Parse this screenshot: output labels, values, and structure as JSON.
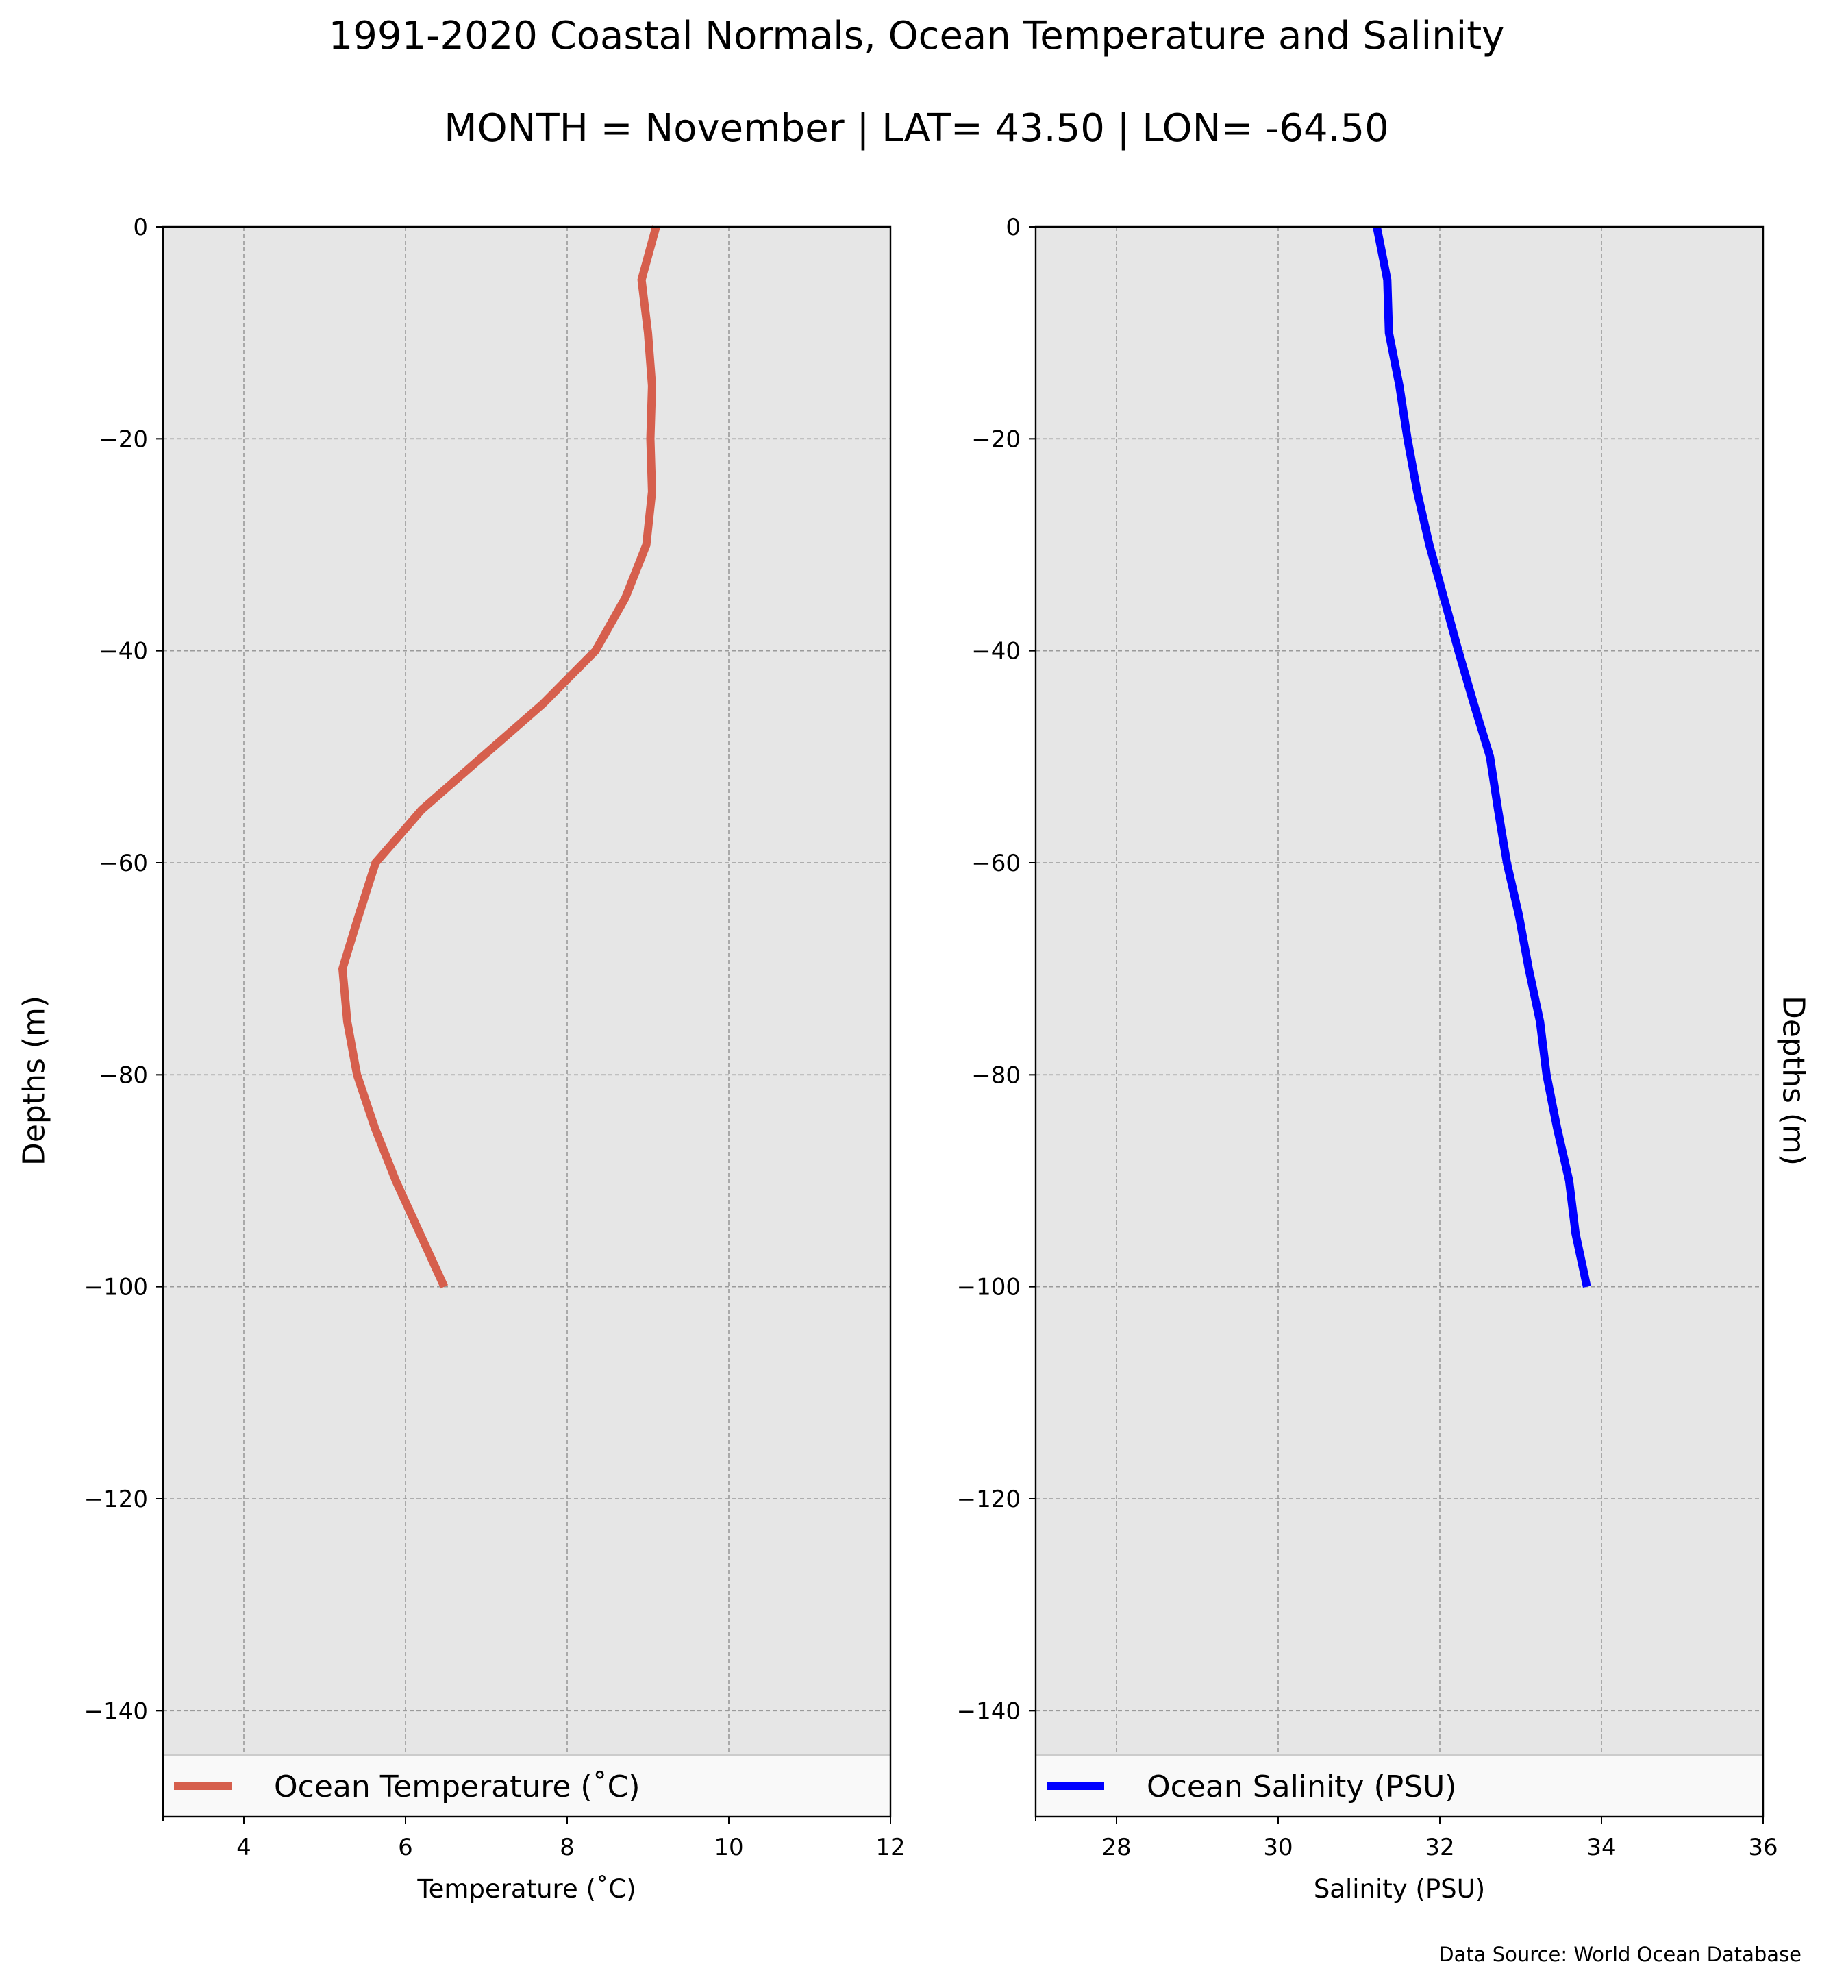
{
  "title": "1991-2020 Coastal Normals, Ocean Temperature and Salinity",
  "subtitle": "MONTH = November | LAT= 43.50 | LON= -64.50",
  "source_note": "Data Source: World Ocean Database",
  "colors": {
    "temperature_line": "#d65f4d",
    "salinity_line": "#0000ff",
    "plot_background": "#e6e6e6",
    "grid": "#9a9a9a"
  },
  "chart_data": [
    {
      "type": "line",
      "xlabel": "Temperature ($^\\circ$C)",
      "xlabel_display": "Temperature (˚C)",
      "ylabel": "Depths (m)",
      "xlim": [
        3,
        12
      ],
      "ylim": [
        -150,
        0
      ],
      "xticks": [
        4,
        6,
        8,
        10,
        12
      ],
      "yticks": [
        0,
        -20,
        -40,
        -60,
        -80,
        -100,
        -120,
        -140
      ],
      "grid": true,
      "legend_position": "bottom",
      "series": [
        {
          "name": "Ocean Temperature (˚C)",
          "color": "#d65f4d",
          "x": [
            9.1,
            8.92,
            9.0,
            9.05,
            9.03,
            9.05,
            8.98,
            8.72,
            8.35,
            7.7,
            6.95,
            6.2,
            5.63,
            5.42,
            5.22,
            5.28,
            5.4,
            5.62,
            5.88,
            6.18,
            6.48
          ],
          "y": [
            0,
            -5,
            -10,
            -15,
            -20,
            -25,
            -30,
            -35,
            -40,
            -45,
            -50,
            -55,
            -60,
            -65,
            -70,
            -75,
            -80,
            -85,
            -90,
            -95,
            -100
          ]
        }
      ]
    },
    {
      "type": "line",
      "xlabel": "Salinity (PSU)",
      "ylabel": "Depths (m)",
      "xlim": [
        27,
        36
      ],
      "ylim": [
        -150,
        0
      ],
      "xticks": [
        28,
        30,
        32,
        34,
        36
      ],
      "yticks": [
        0,
        -20,
        -40,
        -60,
        -80,
        -100,
        -120,
        -140
      ],
      "grid": true,
      "legend_position": "bottom",
      "series": [
        {
          "name": "Ocean Salinity (PSU)",
          "color": "#0000ff",
          "x": [
            31.22,
            31.35,
            31.37,
            31.5,
            31.6,
            31.72,
            31.87,
            32.05,
            32.23,
            32.42,
            32.62,
            32.72,
            32.83,
            32.98,
            33.1,
            33.24,
            33.32,
            33.45,
            33.6,
            33.68,
            33.82
          ],
          "y": [
            0,
            -5,
            -10,
            -15,
            -20,
            -25,
            -30,
            -35,
            -40,
            -45,
            -50,
            -55,
            -60,
            -65,
            -70,
            -75,
            -80,
            -85,
            -90,
            -95,
            -100
          ]
        }
      ]
    }
  ]
}
